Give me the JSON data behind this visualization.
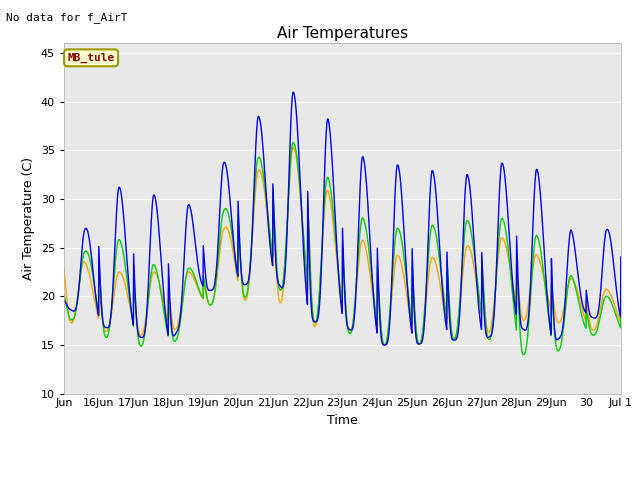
{
  "title": "Air Temperatures",
  "xlabel": "Time",
  "ylabel": "Air Temperature (C)",
  "top_left_text": "No data for f_AirT",
  "annotation_box": "MB_tule",
  "ylim": [
    10,
    46
  ],
  "yticks": [
    10,
    15,
    20,
    25,
    30,
    35,
    40,
    45
  ],
  "line_colors": {
    "li75_t": "#0000EE",
    "li77_temp": "#00CC00",
    "Tsonic": "#FFA500"
  },
  "background_color": "#FFFFFF",
  "plot_bg_color": "#E8E8E8",
  "grid_color": "#FFFFFF",
  "title_fontsize": 11,
  "axis_fontsize": 9,
  "tick_fontsize": 8,
  "xtick_labels": [
    "Jun",
    "16Jun",
    "17Jun",
    "18Jun",
    "19Jun",
    "20Jun",
    "21Jun",
    "22Jun",
    "23Jun",
    "24Jun",
    "25Jun",
    "26Jun",
    "27Jun",
    "28Jun",
    "29Jun",
    "30",
    "Jul 1"
  ],
  "xtick_positions": [
    15,
    16,
    17,
    18,
    19,
    20,
    21,
    22,
    23,
    24,
    25,
    26,
    27,
    28,
    29,
    30,
    31
  ],
  "blue_peaks": [
    20.0,
    31.5,
    31.0,
    30.0,
    29.0,
    37.0,
    39.5,
    42.0,
    35.5,
    33.5,
    33.5,
    32.5,
    32.5,
    34.5,
    32.0,
    23.0,
    29.5
  ],
  "blue_mins": [
    19.0,
    17.0,
    16.0,
    15.0,
    20.5,
    21.0,
    22.0,
    17.5,
    17.0,
    15.0,
    15.0,
    15.5,
    15.5,
    17.0,
    15.0,
    18.0,
    17.0
  ],
  "green_peaks": [
    21.0,
    27.0,
    25.0,
    22.0,
    23.5,
    32.5,
    35.5,
    36.0,
    29.5,
    27.0,
    27.0,
    27.5,
    28.0,
    28.0,
    25.0,
    20.0,
    20.0
  ],
  "green_mins": [
    18.0,
    16.0,
    15.0,
    14.5,
    19.0,
    19.5,
    21.5,
    17.5,
    16.5,
    15.0,
    15.0,
    15.5,
    16.0,
    14.0,
    14.0,
    16.0,
    16.0
  ],
  "orange_peaks": [
    25.0,
    22.5,
    22.5,
    22.5,
    22.5,
    30.0,
    35.0,
    35.5,
    27.5,
    24.5,
    24.0,
    24.0,
    26.0,
    26.0,
    23.0,
    21.0,
    20.5
  ],
  "orange_mins": [
    17.5,
    16.5,
    16.0,
    16.0,
    19.0,
    19.5,
    20.0,
    17.0,
    16.5,
    15.0,
    15.0,
    15.5,
    16.0,
    17.5,
    17.5,
    16.5,
    16.5
  ],
  "peak_hour": 14,
  "min_hour": 5,
  "n_days": 16,
  "n_per_day": 144
}
